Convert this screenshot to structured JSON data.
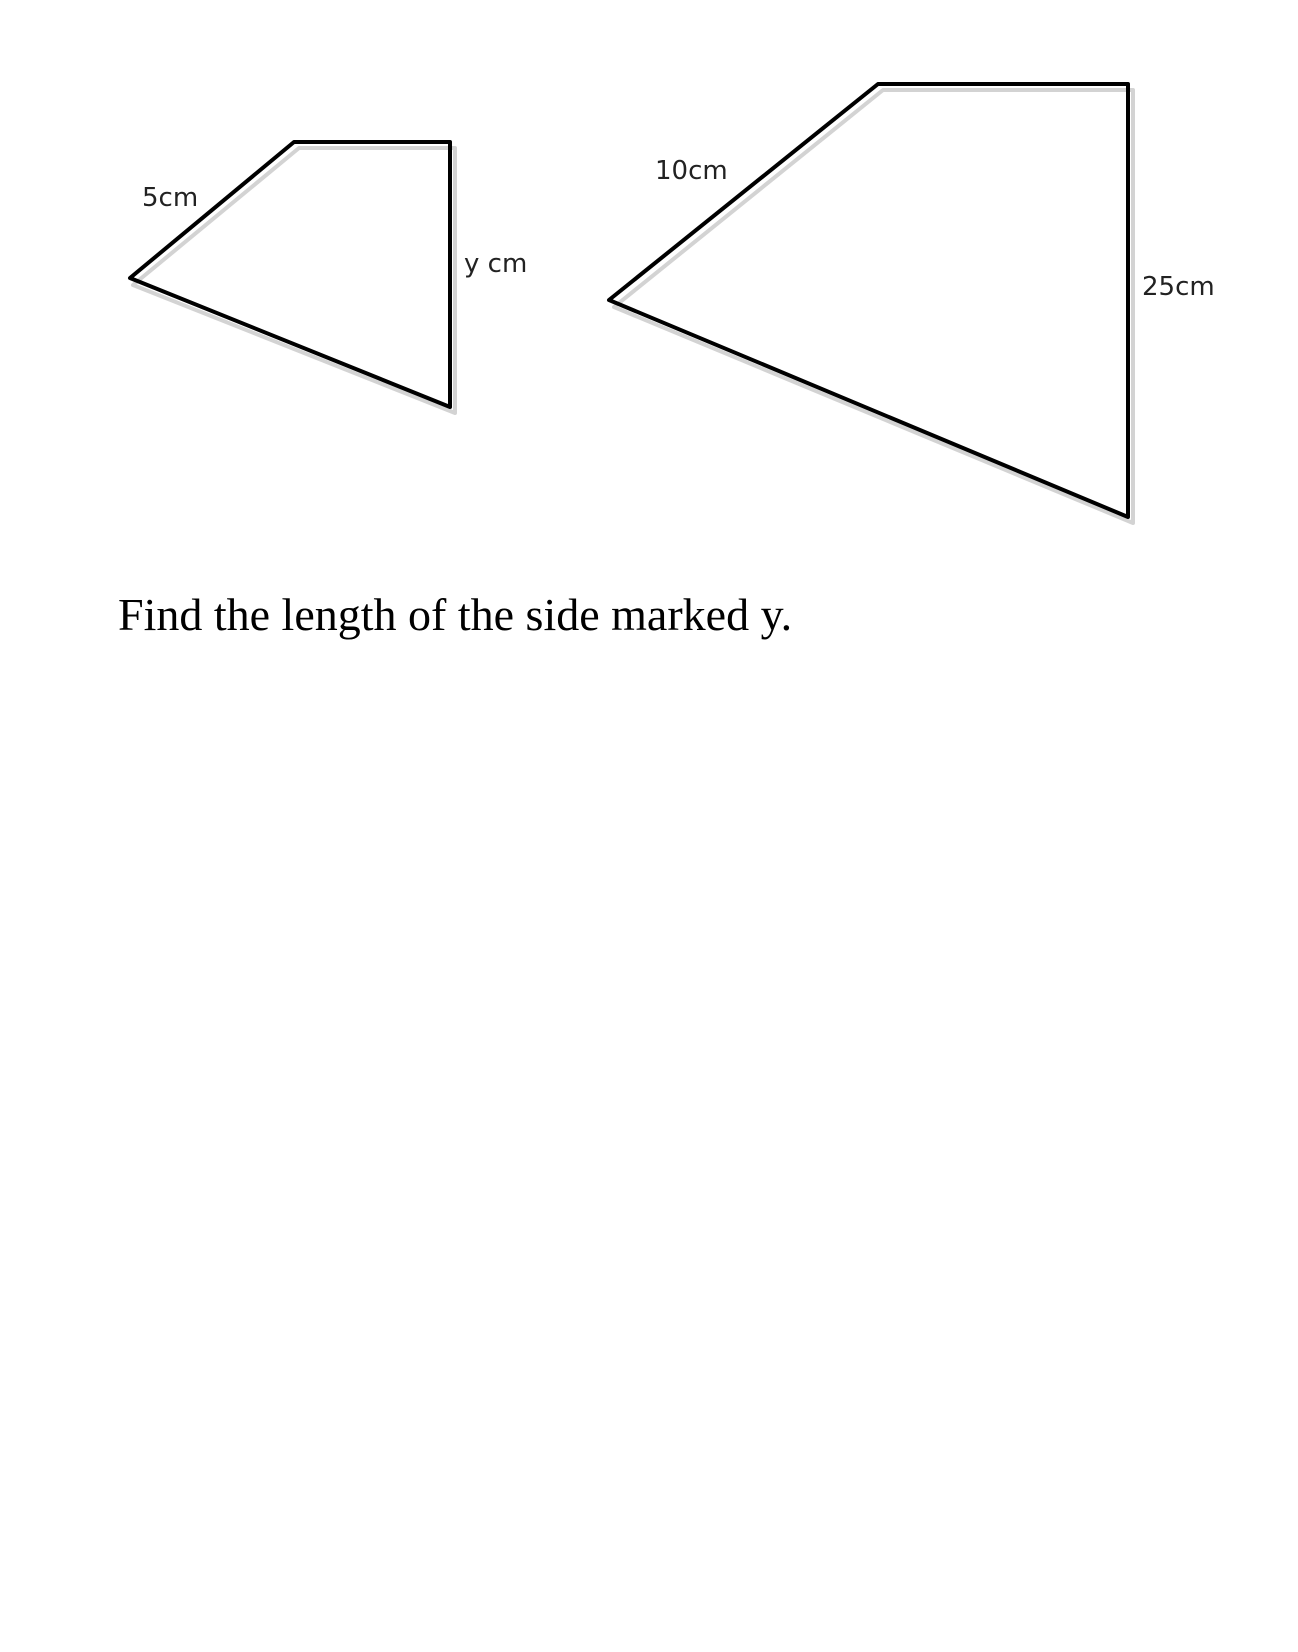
{
  "figure": {
    "small_shape": {
      "slant_side_label": "5cm",
      "vertical_side_label": "y cm"
    },
    "large_shape": {
      "slant_side_label": "10cm",
      "vertical_side_label": "25cm"
    },
    "stroke_color": "#000000"
  },
  "question": {
    "text": "Find the length of the side marked y."
  }
}
